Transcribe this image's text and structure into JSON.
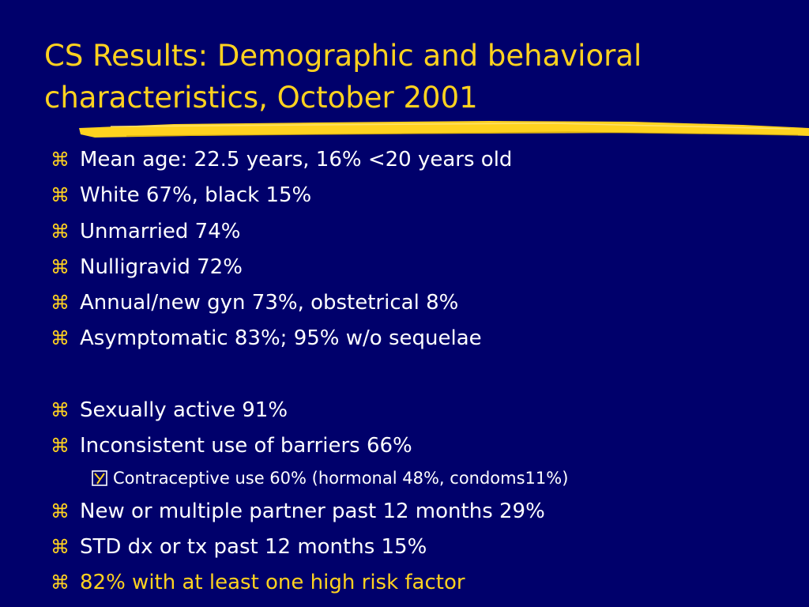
{
  "slide": {
    "title_lines": [
      "CS Results: Demographic and behavioral",
      "characteristics, October 2001"
    ],
    "bullet_icon": "command-key-icon",
    "sub_bullet_icon": "checkbox-y-icon",
    "colors": {
      "background": "#00006b",
      "title": "#ffd21f",
      "text": "#ffffff",
      "highlight": "#ffd21f"
    },
    "bullets": [
      {
        "text": "Mean age: 22.5 years, 16% <20 years old"
      },
      {
        "text": "White 67%, black 15%"
      },
      {
        "text": "Unmarried 74%"
      },
      {
        "text": "Nulligravid 72%"
      },
      {
        "text": "Annual/new gyn 73%, obstetrical 8%"
      },
      {
        "text": "Asymptomatic 83%; 95% w/o sequelae"
      },
      {
        "text": "Sexually active 91%"
      },
      {
        "text": "Inconsistent use of barriers 66%"
      },
      {
        "text": "Contraceptive use 60% (hormonal 48%, condoms11%)"
      },
      {
        "text": "New or multiple partner past 12 months 29%"
      },
      {
        "text": "STD dx or tx past 12 months 15%"
      },
      {
        "text": "82% with at least one high risk factor"
      }
    ]
  }
}
